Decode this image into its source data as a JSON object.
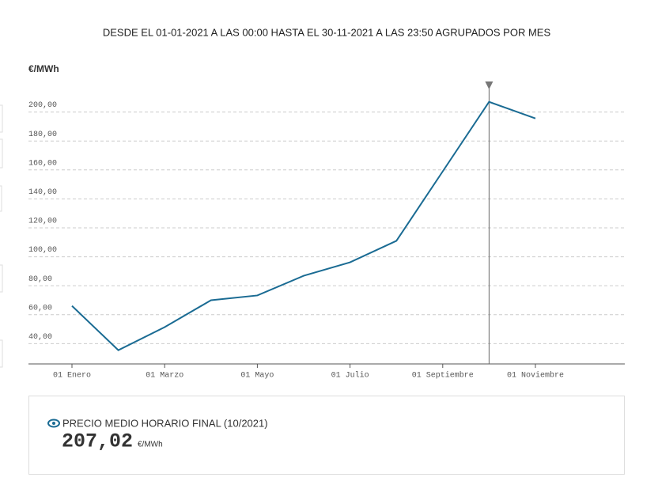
{
  "chart_data": {
    "type": "line",
    "title": "DESDE EL 01-01-2021 A LAS 00:00 HASTA EL 30-11-2021 A LAS 23:50 AGRUPADOS POR MES",
    "y_label": "€/MWh",
    "categories": [
      "01 Enero",
      null,
      "01 Marzo",
      null,
      "01 Mayo",
      null,
      "01 Julio",
      null,
      "01 Septiembre",
      null,
      "01 Noviembre"
    ],
    "series": [
      {
        "name": "Precio medio horario final",
        "color": "#1a6b93",
        "values": [
          66.1,
          35.5,
          51.4,
          70.0,
          73.3,
          86.9,
          96.2,
          111.0,
          159.0,
          207.02,
          195.6
        ]
      }
    ],
    "ylim": [
      26,
      220
    ],
    "yticks": [
      {
        "value": 40,
        "label": "40,00"
      },
      {
        "value": 60,
        "label": "60,00"
      },
      {
        "value": 80,
        "label": "80,00"
      },
      {
        "value": 100,
        "label": "100,00"
      },
      {
        "value": 120,
        "label": "120,00"
      },
      {
        "value": 140,
        "label": "140,00"
      },
      {
        "value": 160,
        "label": "160,00"
      },
      {
        "value": 180,
        "label": "180,00"
      },
      {
        "value": 200,
        "label": "200,00"
      }
    ],
    "grid": true
  },
  "info_box": {
    "label": "PRECIO MEDIO HORARIO FINAL (10/2021)",
    "value": "207,02",
    "unit": "€/MWh"
  }
}
